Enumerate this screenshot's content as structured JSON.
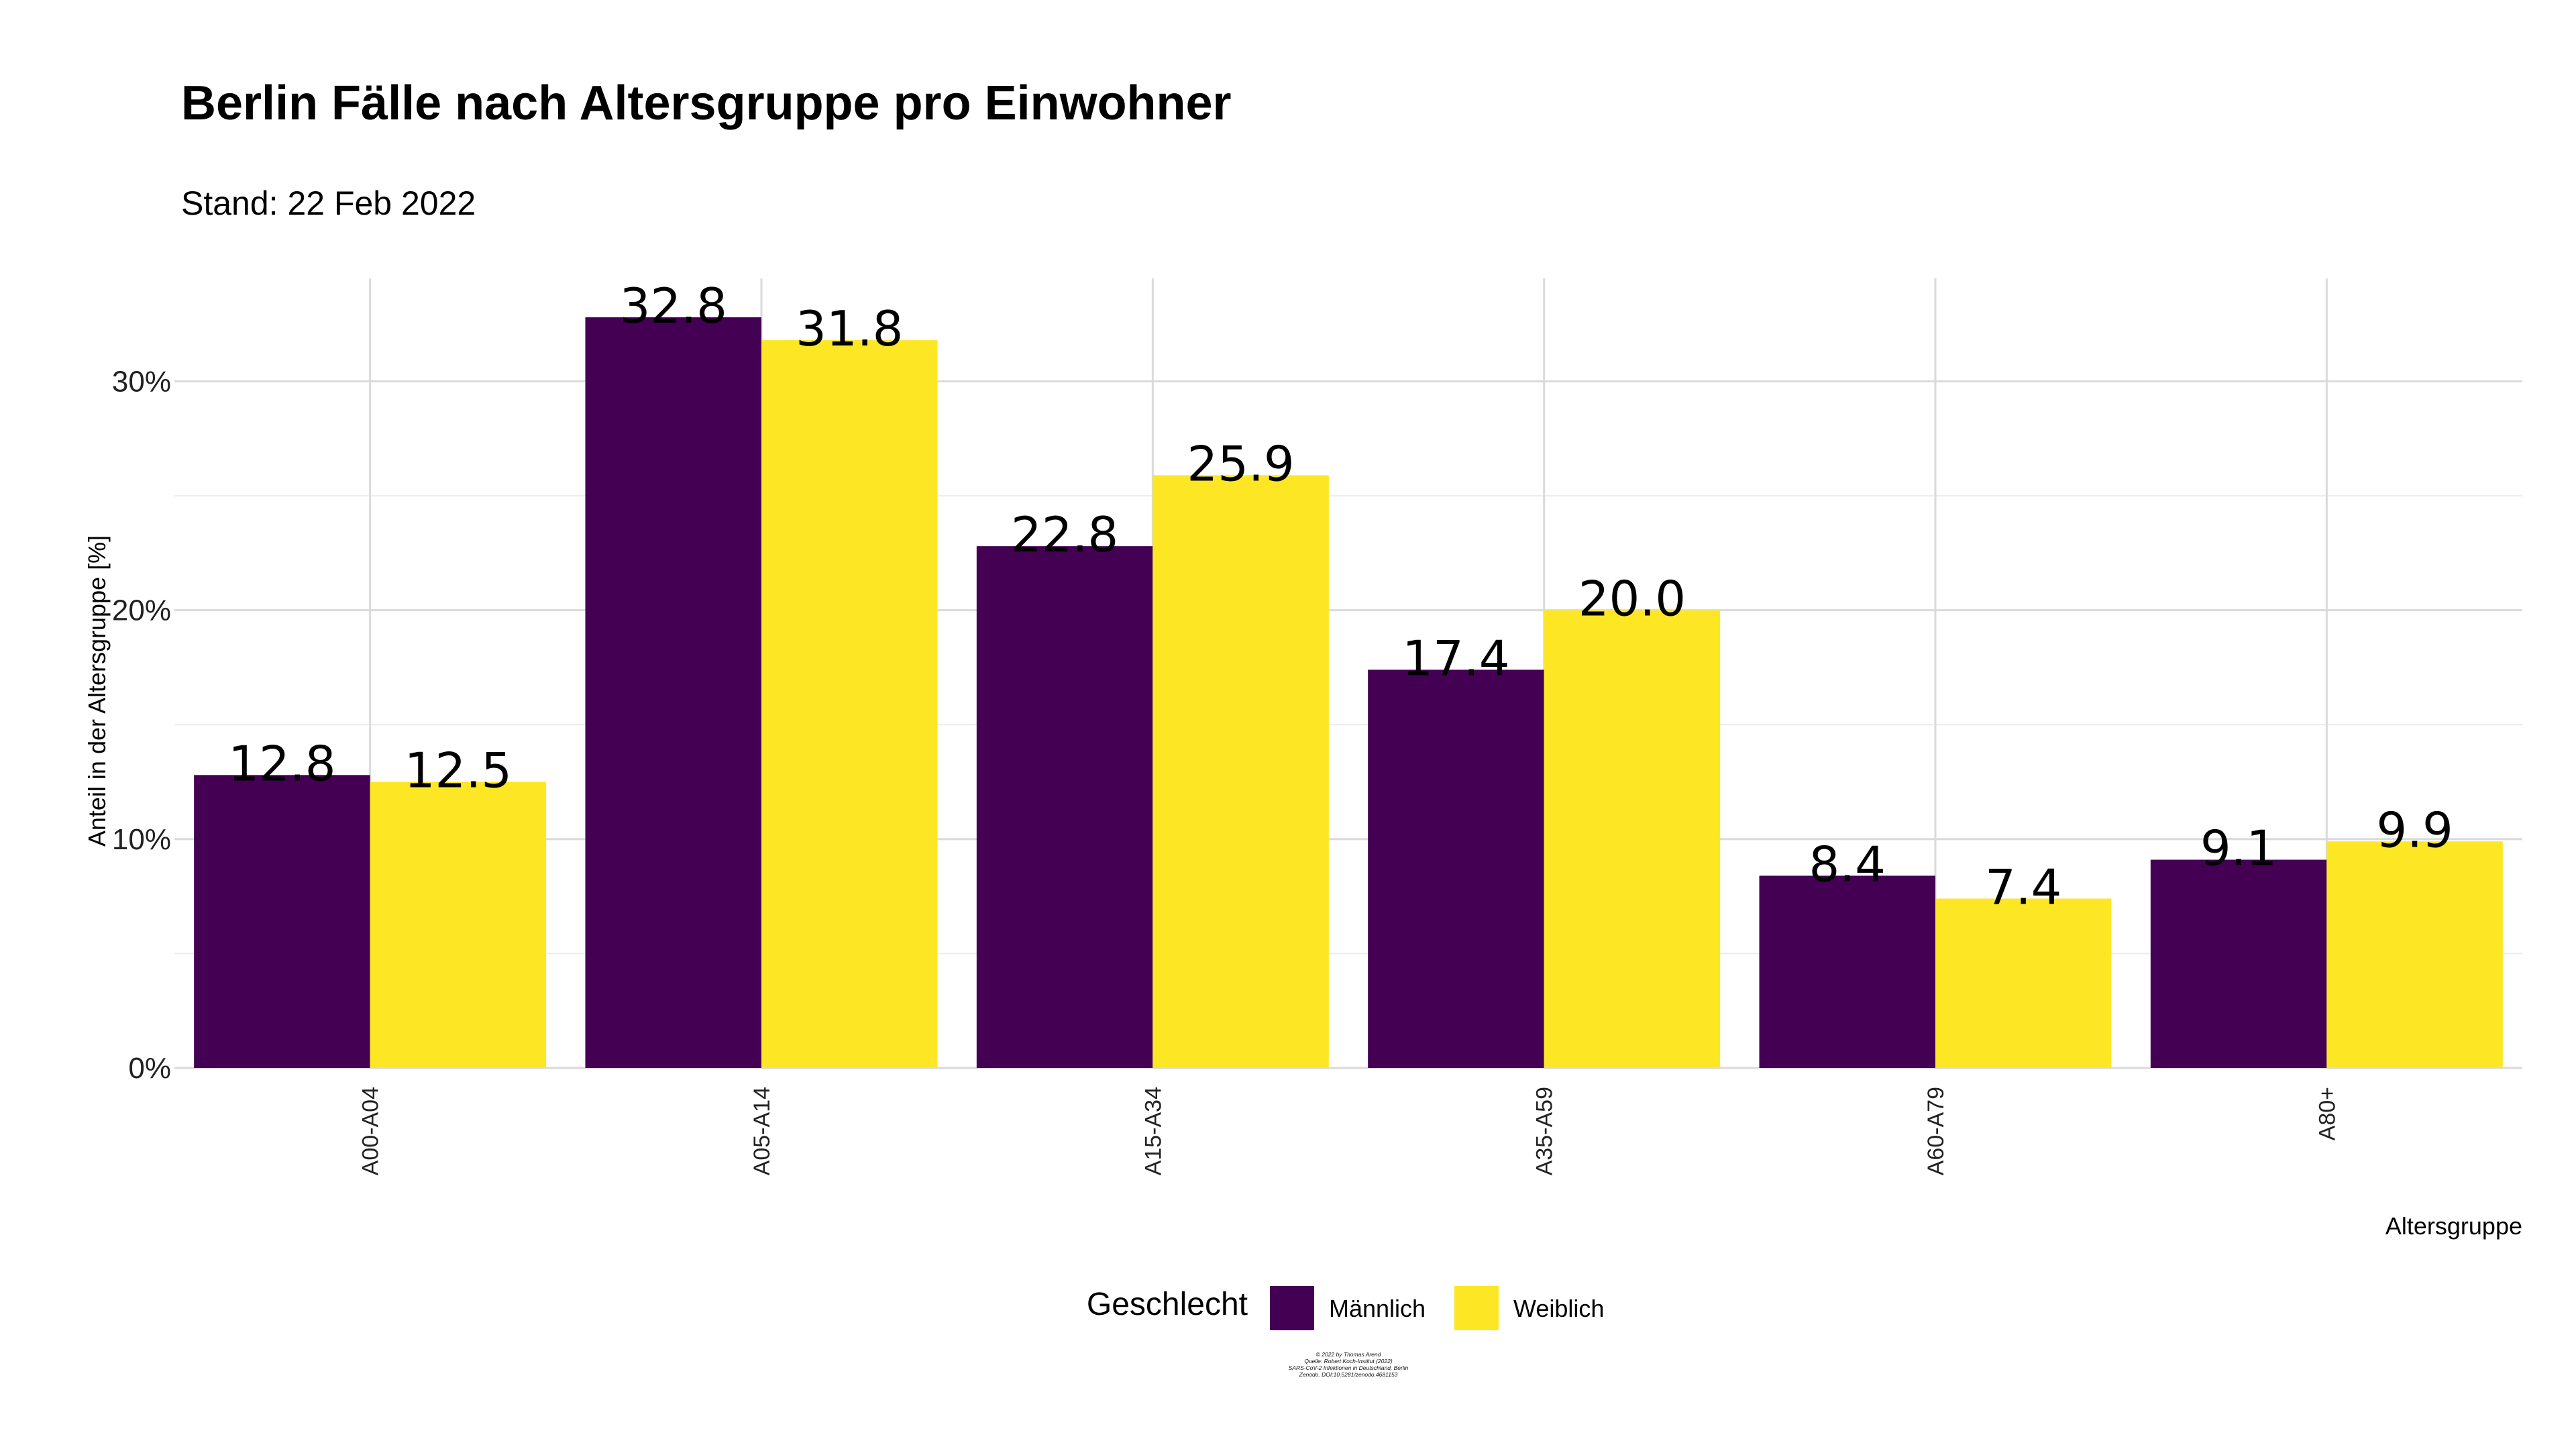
{
  "chart_data": {
    "type": "bar",
    "title": "Berlin Fälle nach Altersgruppe pro Einwohner",
    "subtitle": "Stand: 22 Feb 2022",
    "xlabel": "Altersgruppe",
    "ylabel": "Anteil in der Altersgruppe [%]",
    "ylim": [
      0,
      34.5
    ],
    "yticks": [
      0,
      10,
      20,
      30
    ],
    "ytick_labels": [
      "0%",
      "10%",
      "20%",
      "30%"
    ],
    "categories": [
      "A00-A04",
      "A05-A14",
      "A15-A34",
      "A35-A59",
      "A60-A79",
      "A80+"
    ],
    "series": [
      {
        "name": "Männlich",
        "color": "#440154",
        "values": [
          12.8,
          32.8,
          22.8,
          17.4,
          8.4,
          9.1
        ],
        "labels": [
          "12.8",
          "32.8",
          "22.8",
          "17.4",
          "8.4",
          "9.1"
        ]
      },
      {
        "name": "Weiblich",
        "color": "#FDE725",
        "values": [
          12.5,
          31.8,
          25.9,
          20.0,
          7.4,
          9.9
        ],
        "labels": [
          "12.5",
          "31.8",
          "25.9",
          "20.0",
          "7.4",
          "9.9"
        ]
      }
    ],
    "legend": {
      "title": "Geschlecht",
      "position": "bottom"
    },
    "grid": true,
    "caption": [
      "© 2022 by Thomas Arend",
      "Quelle: Robert Koch-Institut (2022)",
      "SARS-CoV-2 Infektionen in Deutschland, Berlin",
      "Zenodo. DOI:10.5281/zenodo.4681153"
    ]
  }
}
